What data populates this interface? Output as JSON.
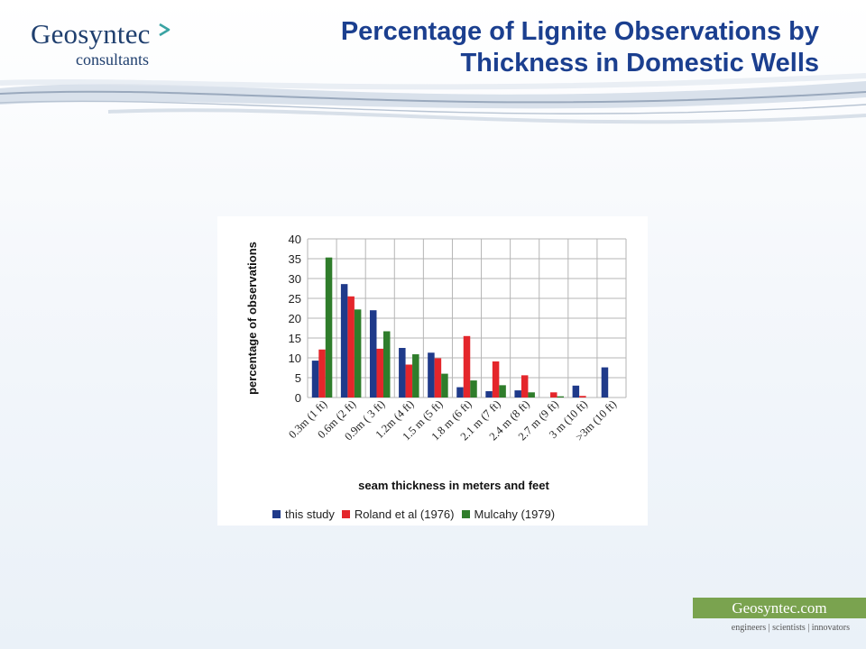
{
  "header": {
    "logo_name": "Geosyntec",
    "logo_sub": "consultants",
    "title_line1": "Percentage of Lignite Observations by",
    "title_line2": "Thickness in Domestic Wells"
  },
  "footer": {
    "site": "Geosyntec.com",
    "tagline": "engineers | scientists | innovators"
  },
  "colors": {
    "title": "#1b3f8f",
    "brand_green": "#7aa34f",
    "series_blue": "#1f3a8a",
    "series_red": "#e4262b",
    "series_green": "#2f7d2b"
  },
  "chart_data": {
    "type": "bar",
    "ylabel": "percentage of observations",
    "xlabel": "seam thickness in meters and feet",
    "ylim": [
      0,
      40
    ],
    "yticks": [
      0,
      5,
      10,
      15,
      20,
      25,
      30,
      35,
      40
    ],
    "grid": true,
    "legend_position": "bottom",
    "categories": [
      "0.3m (1 ft)",
      "0.6m (2 ft)",
      "0.9m ( 3 ft)",
      "1.2m (4 ft)",
      "1.5 m (5 ft)",
      "1.8 m (6 ft)",
      "2.1 m (7 ft)",
      "2.4 m (8 ft)",
      "2.7 m (9 ft)",
      "3 m (10 ft)",
      ">3m (10 ft)"
    ],
    "series": [
      {
        "name": "this study",
        "color": "#1f3a8a",
        "values": [
          9.3,
          28.6,
          22,
          12.5,
          11.3,
          2.6,
          1.6,
          1.8,
          0,
          3,
          7.6
        ]
      },
      {
        "name": "Roland et al (1976)",
        "color": "#e4262b",
        "values": [
          12.1,
          25.5,
          12.3,
          8.3,
          9.9,
          15.5,
          9.1,
          5.6,
          1.3,
          0.4,
          0
        ]
      },
      {
        "name": "Mulcahy (1979)",
        "color": "#2f7d2b",
        "values": [
          35.3,
          22.2,
          16.7,
          10.9,
          6,
          4.3,
          3.1,
          1.3,
          0.3,
          0,
          0
        ]
      }
    ]
  }
}
